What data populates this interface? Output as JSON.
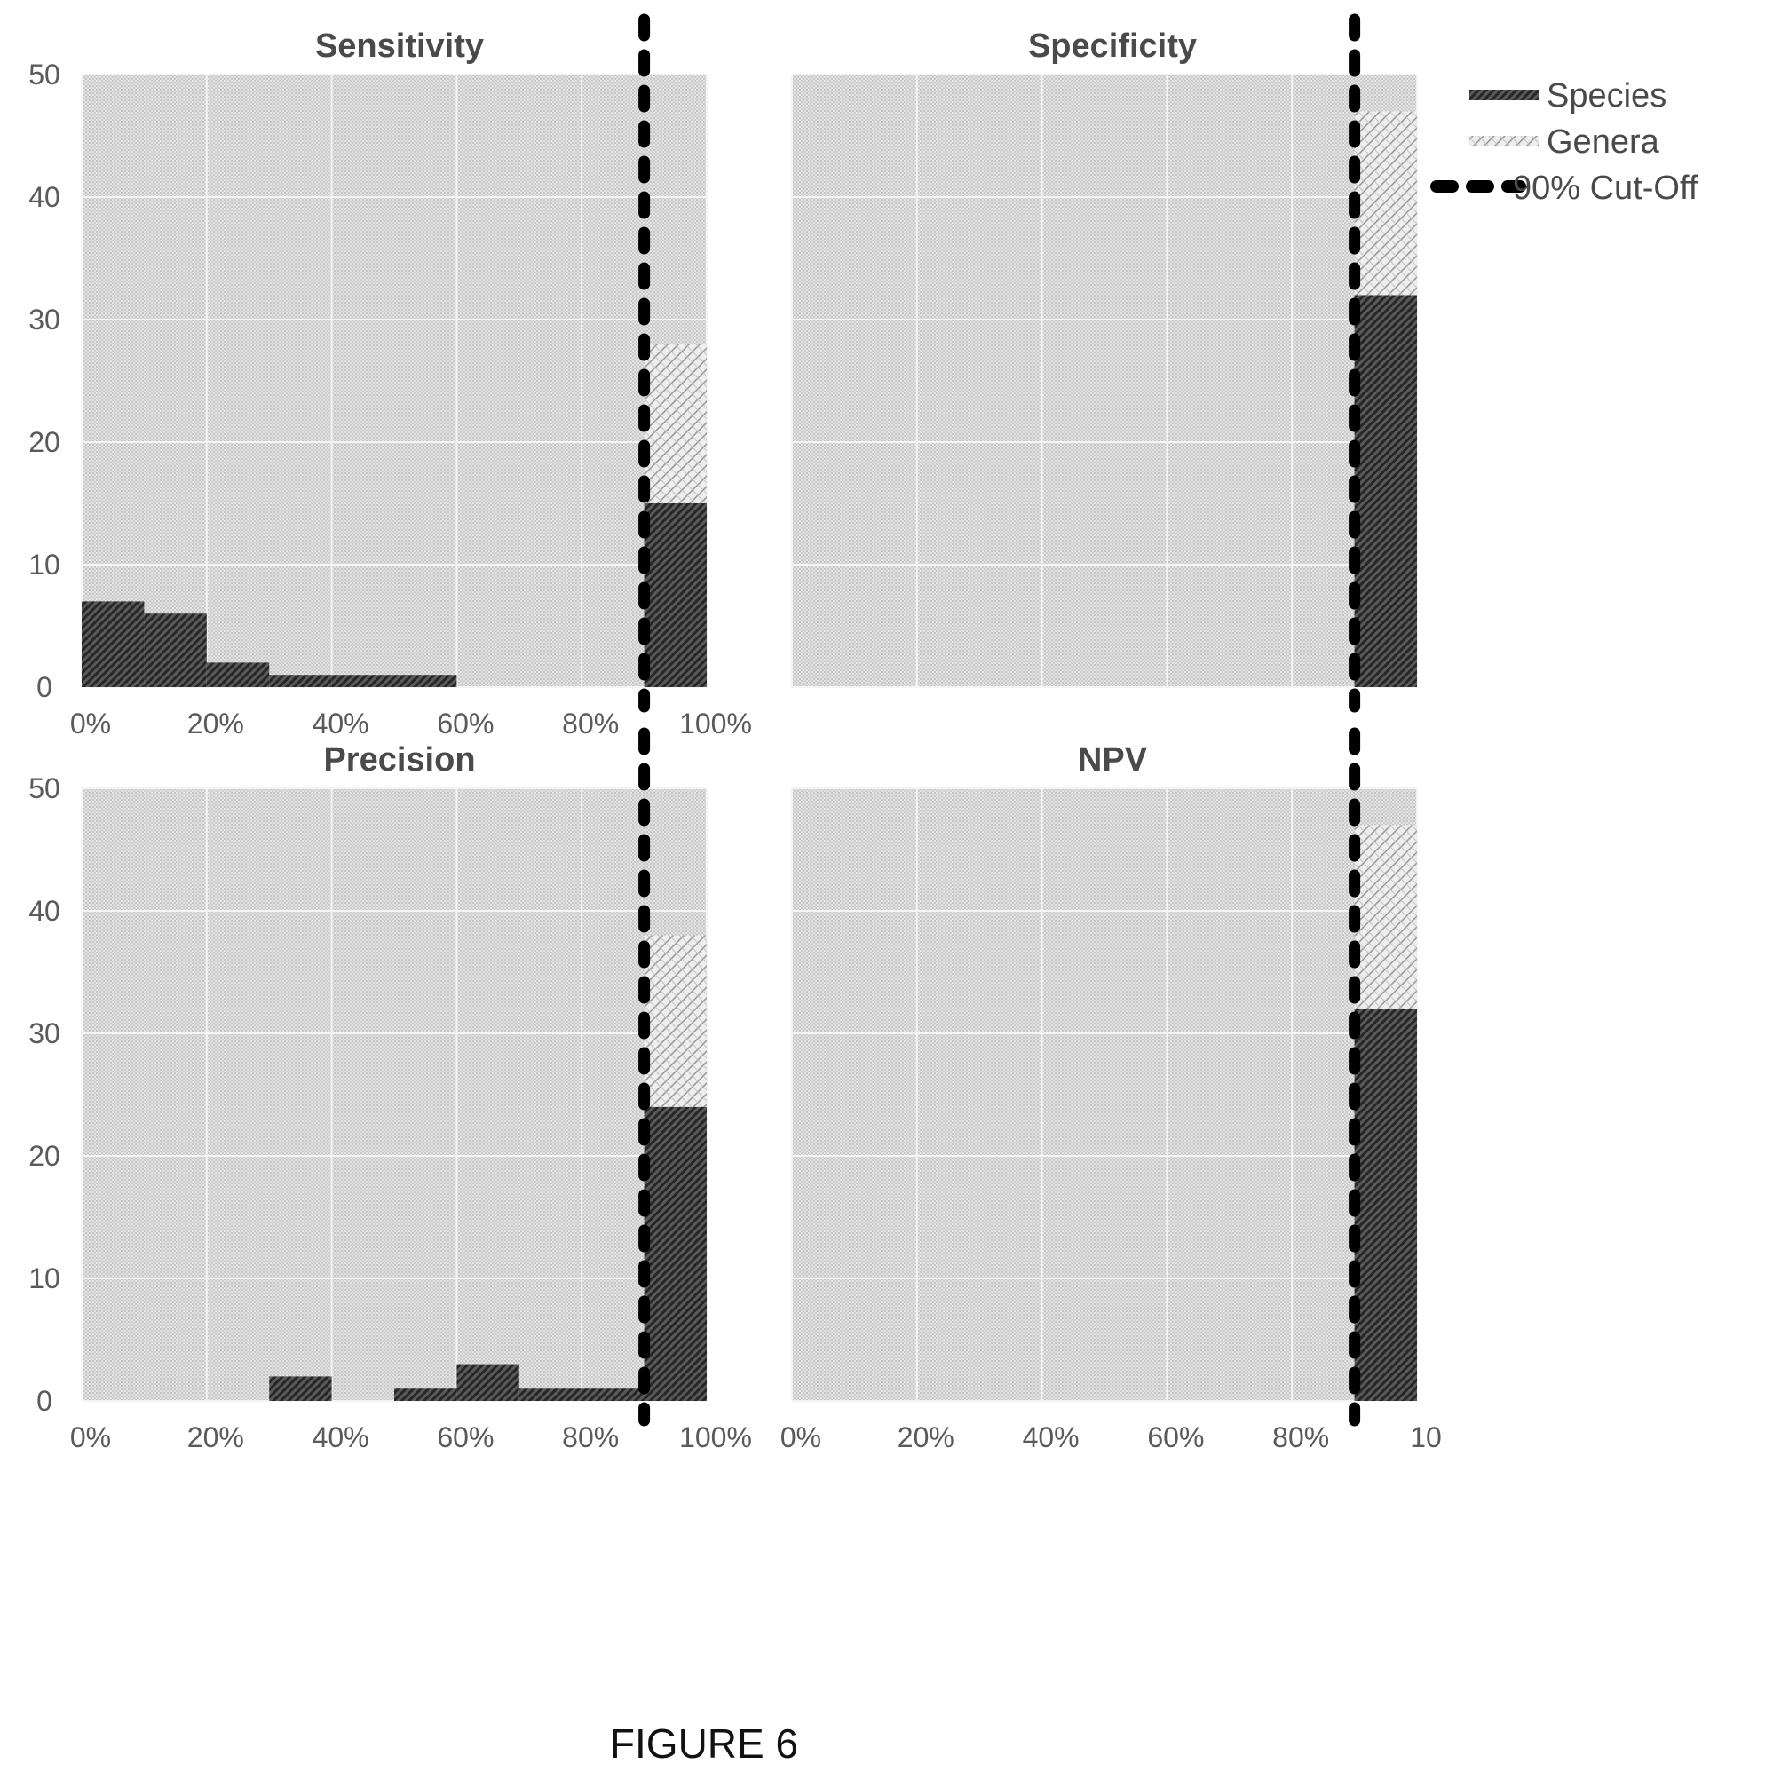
{
  "figure_caption": "FIGURE 6",
  "legend": {
    "species": "Species",
    "genera": "Genera",
    "cutoff": "90% Cut-Off"
  },
  "chart_data": [
    {
      "type": "bar",
      "stacked": true,
      "title": "Sensitivity",
      "bins": [
        "0-10%",
        "10-20%",
        "20-30%",
        "30-40%",
        "40-50%",
        "50-60%",
        "60-70%",
        "70-80%",
        "80-90%",
        "90-100%"
      ],
      "series": [
        {
          "name": "Species",
          "values": [
            7,
            6,
            2,
            1,
            1,
            1,
            0,
            0,
            0,
            15
          ]
        },
        {
          "name": "Genera",
          "values": [
            0,
            0,
            0,
            0,
            0,
            0,
            0,
            0,
            0,
            13
          ]
        }
      ],
      "xlim": [
        0,
        100
      ],
      "ylim": [
        0,
        50
      ],
      "yticks": [
        "0",
        "10",
        "20",
        "30",
        "40",
        "50"
      ],
      "xticks": [
        "0%",
        "20%",
        "40%",
        "60%",
        "80%",
        "100%"
      ],
      "cutoff": 90
    },
    {
      "type": "bar",
      "stacked": true,
      "title": "Specificity",
      "bins": [
        "0-10%",
        "10-20%",
        "20-30%",
        "30-40%",
        "40-50%",
        "50-60%",
        "60-70%",
        "70-80%",
        "80-90%",
        "90-100%"
      ],
      "series": [
        {
          "name": "Species",
          "values": [
            0,
            0,
            0,
            0,
            0,
            0,
            0,
            0,
            0,
            32
          ]
        },
        {
          "name": "Genera",
          "values": [
            0,
            0,
            0,
            0,
            0,
            0,
            0,
            0,
            0,
            15
          ]
        }
      ],
      "xlim": [
        0,
        100
      ],
      "ylim": [
        0,
        50
      ],
      "yticks": [],
      "xticks": [],
      "cutoff": 90
    },
    {
      "type": "bar",
      "stacked": true,
      "title": "Precision",
      "bins": [
        "0-10%",
        "10-20%",
        "20-30%",
        "30-40%",
        "40-50%",
        "50-60%",
        "60-70%",
        "70-80%",
        "80-90%",
        "90-100%"
      ],
      "series": [
        {
          "name": "Species",
          "values": [
            0,
            0,
            0,
            2,
            0,
            1,
            3,
            1,
            1,
            24
          ]
        },
        {
          "name": "Genera",
          "values": [
            0,
            0,
            0,
            0,
            0,
            0,
            0,
            0,
            0,
            14
          ]
        }
      ],
      "xlim": [
        0,
        100
      ],
      "ylim": [
        0,
        50
      ],
      "yticks": [
        "0",
        "10",
        "20",
        "30",
        "40",
        "50"
      ],
      "xticks": [
        "0%",
        "20%",
        "40%",
        "60%",
        "80%",
        "100%"
      ],
      "cutoff": 90
    },
    {
      "type": "bar",
      "stacked": true,
      "title": "NPV",
      "bins": [
        "0-10%",
        "10-20%",
        "20-30%",
        "30-40%",
        "40-50%",
        "50-60%",
        "60-70%",
        "70-80%",
        "80-90%",
        "90-100%"
      ],
      "series": [
        {
          "name": "Species",
          "values": [
            0,
            0,
            0,
            0,
            0,
            0,
            0,
            0,
            0,
            32
          ]
        },
        {
          "name": "Genera",
          "values": [
            0,
            0,
            0,
            0,
            0,
            0,
            0,
            0,
            0,
            15
          ]
        }
      ],
      "xlim": [
        0,
        100
      ],
      "ylim": [
        0,
        50
      ],
      "yticks": [],
      "xticks": [
        "0%",
        "20%",
        "40%",
        "60%",
        "80%",
        "10"
      ],
      "cutoff": 90
    }
  ]
}
